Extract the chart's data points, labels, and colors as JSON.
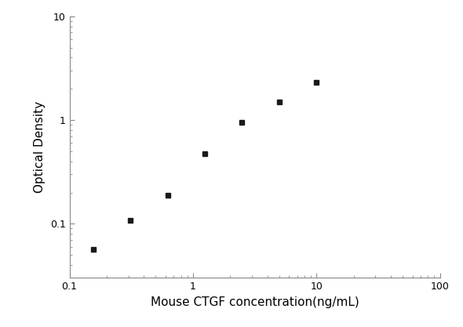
{
  "x_data": [
    0.156,
    0.313,
    0.625,
    1.25,
    2.5,
    5.0,
    10.0
  ],
  "y_data": [
    0.057,
    0.108,
    0.188,
    0.47,
    0.95,
    1.5,
    2.3
  ],
  "xlabel": "Mouse CTGF concentration(ng/mL)",
  "ylabel": "Optical Density",
  "xlim": [
    0.1,
    100
  ],
  "ylim": [
    0.03,
    10
  ],
  "marker": "s",
  "marker_color": "#1a1a1a",
  "marker_size": 5,
  "line_color": "#b0b0b0",
  "background_color": "#ffffff",
  "xlabel_fontsize": 11,
  "ylabel_fontsize": 11,
  "tick_labelsize": 9
}
